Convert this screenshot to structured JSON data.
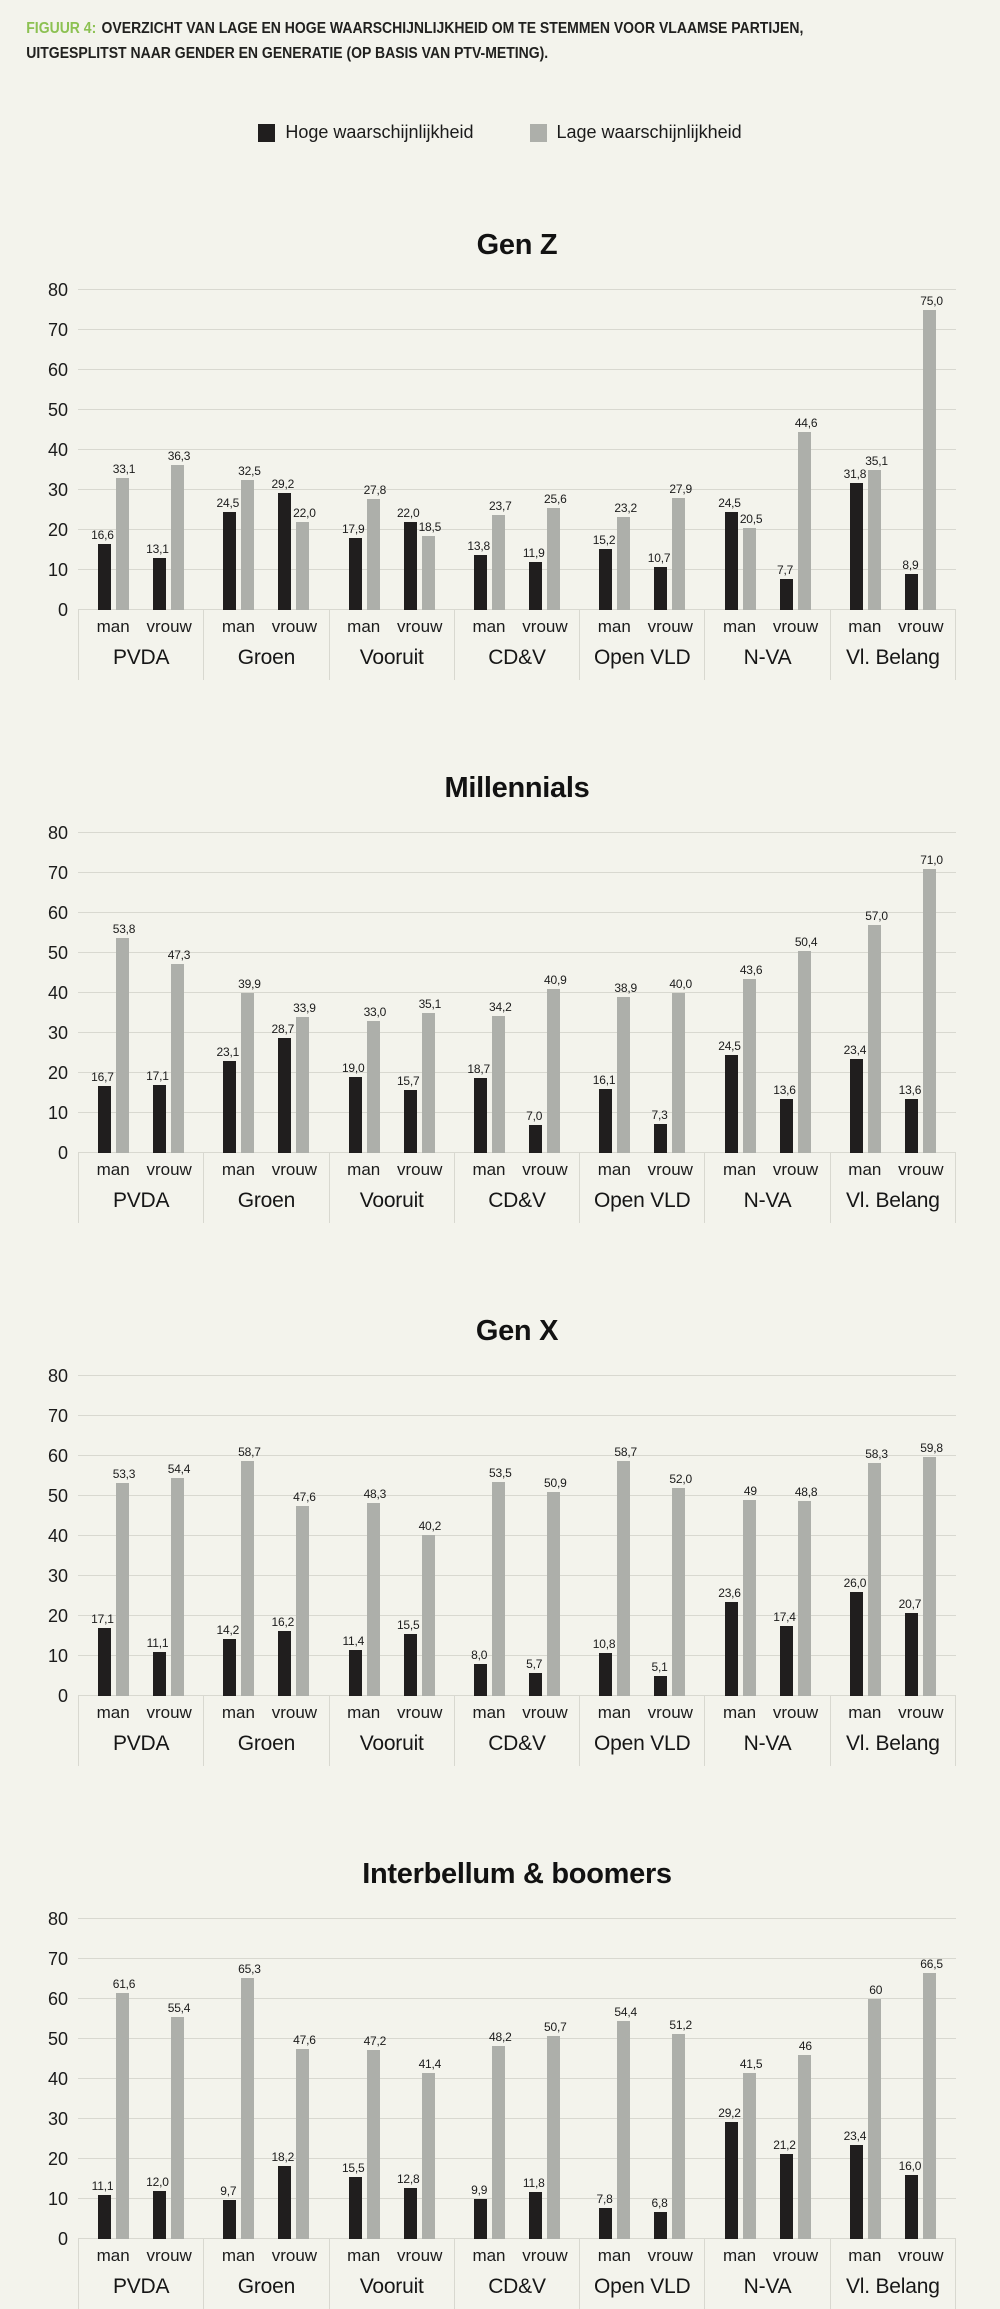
{
  "caption": {
    "prefix": "FIGUUR 4:",
    "line1": "OVERZICHT VAN LAGE EN HOGE WAARSCHIJNLIJKHEID OM TE STEMMEN VOOR VLAAMSE PARTIJEN,",
    "line2": "UITGESPLITST NAAR GENDER EN GENERATIE (OP BASIS VAN PTV-METING)."
  },
  "figure": {
    "colors": {
      "background": "#f3f3ec",
      "accent_green": "#8cc152",
      "bar_high": "#201e1e",
      "bar_low": "#adafaa",
      "gridline": "#d8d8d0"
    }
  },
  "legend": [
    {
      "key": "hoge",
      "label": "Hoge waarschijnlijkheid",
      "color": "#201e1e"
    },
    {
      "key": "lage",
      "label": "Lage waarschijnlijkheid",
      "color": "#adafaa"
    }
  ],
  "chart_data": [
    {
      "type": "bar",
      "title": "Gen Z",
      "ylim": [
        0,
        80
      ],
      "yticks": [
        0,
        10,
        20,
        30,
        40,
        50,
        60,
        70,
        80
      ],
      "grid": true,
      "legend_position": "top",
      "decimal_separator": ",",
      "series_names": [
        "Hoge waarschijnlijkheid",
        "Lage waarschijnlijkheid"
      ],
      "subcategories": [
        "man",
        "vrouw"
      ],
      "groups": [
        {
          "party": "PVDA",
          "bars": [
            {
              "gender": "man",
              "hoge": 16.6,
              "lage": 33.1
            },
            {
              "gender": "vrouw",
              "hoge": 13.1,
              "lage": 36.3
            }
          ]
        },
        {
          "party": "Groen",
          "bars": [
            {
              "gender": "man",
              "hoge": 24.5,
              "lage": 32.5
            },
            {
              "gender": "vrouw",
              "hoge": 29.2,
              "lage": 22.0
            }
          ]
        },
        {
          "party": "Vooruit",
          "bars": [
            {
              "gender": "man",
              "hoge": 17.9,
              "lage": 27.8
            },
            {
              "gender": "vrouw",
              "hoge": 22.0,
              "lage": 18.5
            }
          ]
        },
        {
          "party": "CD&V",
          "bars": [
            {
              "gender": "man",
              "hoge": 13.8,
              "lage": 23.7
            },
            {
              "gender": "vrouw",
              "hoge": 11.9,
              "lage": 25.6
            }
          ]
        },
        {
          "party": "Open VLD",
          "bars": [
            {
              "gender": "man",
              "hoge": 15.2,
              "lage": 23.2
            },
            {
              "gender": "vrouw",
              "hoge": 10.7,
              "lage": 27.9
            }
          ]
        },
        {
          "party": "N-VA",
          "bars": [
            {
              "gender": "man",
              "hoge": 24.5,
              "lage": 20.5
            },
            {
              "gender": "vrouw",
              "hoge": 7.7,
              "lage": 44.6
            }
          ]
        },
        {
          "party": "Vl. Belang",
          "bars": [
            {
              "gender": "man",
              "hoge": 31.8,
              "lage": 35.1
            },
            {
              "gender": "vrouw",
              "hoge": 8.9,
              "lage": 75.0
            }
          ]
        }
      ]
    },
    {
      "type": "bar",
      "title": "Millennials",
      "ylim": [
        0,
        80
      ],
      "yticks": [
        0,
        10,
        20,
        30,
        40,
        50,
        60,
        70,
        80
      ],
      "grid": true,
      "decimal_separator": ",",
      "series_names": [
        "Hoge waarschijnlijkheid",
        "Lage waarschijnlijkheid"
      ],
      "subcategories": [
        "man",
        "vrouw"
      ],
      "groups": [
        {
          "party": "PVDA",
          "bars": [
            {
              "gender": "man",
              "hoge": 16.7,
              "lage": 53.8
            },
            {
              "gender": "vrouw",
              "hoge": 17.1,
              "lage": 47.3
            }
          ]
        },
        {
          "party": "Groen",
          "bars": [
            {
              "gender": "man",
              "hoge": 23.1,
              "lage": 39.9
            },
            {
              "gender": "vrouw",
              "hoge": 28.7,
              "lage": 33.9
            }
          ]
        },
        {
          "party": "Vooruit",
          "bars": [
            {
              "gender": "man",
              "hoge": 19.0,
              "lage": 33.0
            },
            {
              "gender": "vrouw",
              "hoge": 15.7,
              "lage": 35.1
            }
          ]
        },
        {
          "party": "CD&V",
          "bars": [
            {
              "gender": "man",
              "hoge": 18.7,
              "lage": 34.2
            },
            {
              "gender": "vrouw",
              "hoge": 7.0,
              "lage": 40.9
            }
          ]
        },
        {
          "party": "Open VLD",
          "bars": [
            {
              "gender": "man",
              "hoge": 16.1,
              "lage": 38.9
            },
            {
              "gender": "vrouw",
              "hoge": 7.3,
              "lage": 40.0
            }
          ]
        },
        {
          "party": "N-VA",
          "bars": [
            {
              "gender": "man",
              "hoge": 24.5,
              "lage": 43.6
            },
            {
              "gender": "vrouw",
              "hoge": 13.6,
              "lage": 50.4
            }
          ]
        },
        {
          "party": "Vl. Belang",
          "bars": [
            {
              "gender": "man",
              "hoge": 23.4,
              "lage": 57.0
            },
            {
              "gender": "vrouw",
              "hoge": 13.6,
              "lage": 71.0
            }
          ]
        }
      ]
    },
    {
      "type": "bar",
      "title": "Gen X",
      "ylim": [
        0,
        80
      ],
      "yticks": [
        0,
        10,
        20,
        30,
        40,
        50,
        60,
        70,
        80
      ],
      "grid": true,
      "decimal_separator": ",",
      "series_names": [
        "Hoge waarschijnlijkheid",
        "Lage waarschijnlijkheid"
      ],
      "subcategories": [
        "man",
        "vrouw"
      ],
      "groups": [
        {
          "party": "PVDA",
          "bars": [
            {
              "gender": "man",
              "hoge": 17.1,
              "lage": 53.3
            },
            {
              "gender": "vrouw",
              "hoge": 11.1,
              "lage": 54.4
            }
          ]
        },
        {
          "party": "Groen",
          "bars": [
            {
              "gender": "man",
              "hoge": 14.2,
              "lage": 58.7
            },
            {
              "gender": "vrouw",
              "hoge": 16.2,
              "lage": 47.6
            }
          ]
        },
        {
          "party": "Vooruit",
          "bars": [
            {
              "gender": "man",
              "hoge": 11.4,
              "lage": 48.3
            },
            {
              "gender": "vrouw",
              "hoge": 15.5,
              "lage": 40.2
            }
          ]
        },
        {
          "party": "CD&V",
          "bars": [
            {
              "gender": "man",
              "hoge": 8.0,
              "lage": 53.5
            },
            {
              "gender": "vrouw",
              "hoge": 5.7,
              "lage": 50.9
            }
          ]
        },
        {
          "party": "Open VLD",
          "bars": [
            {
              "gender": "man",
              "hoge": 10.8,
              "lage": 58.7
            },
            {
              "gender": "vrouw",
              "hoge": 5.1,
              "lage": 52.0
            }
          ]
        },
        {
          "party": "N-VA",
          "bars": [
            {
              "gender": "man",
              "hoge": 23.6,
              "lage": 49,
              "lage_label": "49"
            },
            {
              "gender": "vrouw",
              "hoge": 17.4,
              "lage": 48.8
            }
          ]
        },
        {
          "party": "Vl. Belang",
          "bars": [
            {
              "gender": "man",
              "hoge": 26.0,
              "lage": 58.3
            },
            {
              "gender": "vrouw",
              "hoge": 20.7,
              "lage": 59.8
            }
          ]
        }
      ]
    },
    {
      "type": "bar",
      "title": "Interbellum & boomers",
      "ylim": [
        0,
        80
      ],
      "yticks": [
        0,
        10,
        20,
        30,
        40,
        50,
        60,
        70,
        80
      ],
      "grid": true,
      "decimal_separator": ",",
      "series_names": [
        "Hoge waarschijnlijkheid",
        "Lage waarschijnlijkheid"
      ],
      "subcategories": [
        "man",
        "vrouw"
      ],
      "groups": [
        {
          "party": "PVDA",
          "bars": [
            {
              "gender": "man",
              "hoge": 11.1,
              "lage": 61.6
            },
            {
              "gender": "vrouw",
              "hoge": 12.0,
              "lage": 55.4
            }
          ]
        },
        {
          "party": "Groen",
          "bars": [
            {
              "gender": "man",
              "hoge": 9.7,
              "lage": 65.3
            },
            {
              "gender": "vrouw",
              "hoge": 18.2,
              "lage": 47.6
            }
          ]
        },
        {
          "party": "Vooruit",
          "bars": [
            {
              "gender": "man",
              "hoge": 15.5,
              "lage": 47.2
            },
            {
              "gender": "vrouw",
              "hoge": 12.8,
              "lage": 41.4
            }
          ]
        },
        {
          "party": "CD&V",
          "bars": [
            {
              "gender": "man",
              "hoge": 9.9,
              "lage": 48.2
            },
            {
              "gender": "vrouw",
              "hoge": 11.8,
              "lage": 50.7
            }
          ]
        },
        {
          "party": "Open VLD",
          "bars": [
            {
              "gender": "man",
              "hoge": 7.8,
              "lage": 54.4
            },
            {
              "gender": "vrouw",
              "hoge": 6.8,
              "lage": 51.2
            }
          ]
        },
        {
          "party": "N-VA",
          "bars": [
            {
              "gender": "man",
              "hoge": 29.2,
              "lage": 41.5
            },
            {
              "gender": "vrouw",
              "hoge": 21.2,
              "lage": 46,
              "lage_label": "46"
            }
          ]
        },
        {
          "party": "Vl. Belang",
          "bars": [
            {
              "gender": "man",
              "hoge": 23.4,
              "lage": 60,
              "lage_label": "60"
            },
            {
              "gender": "vrouw",
              "hoge": 16.0,
              "lage": 66.5
            }
          ]
        }
      ]
    }
  ]
}
